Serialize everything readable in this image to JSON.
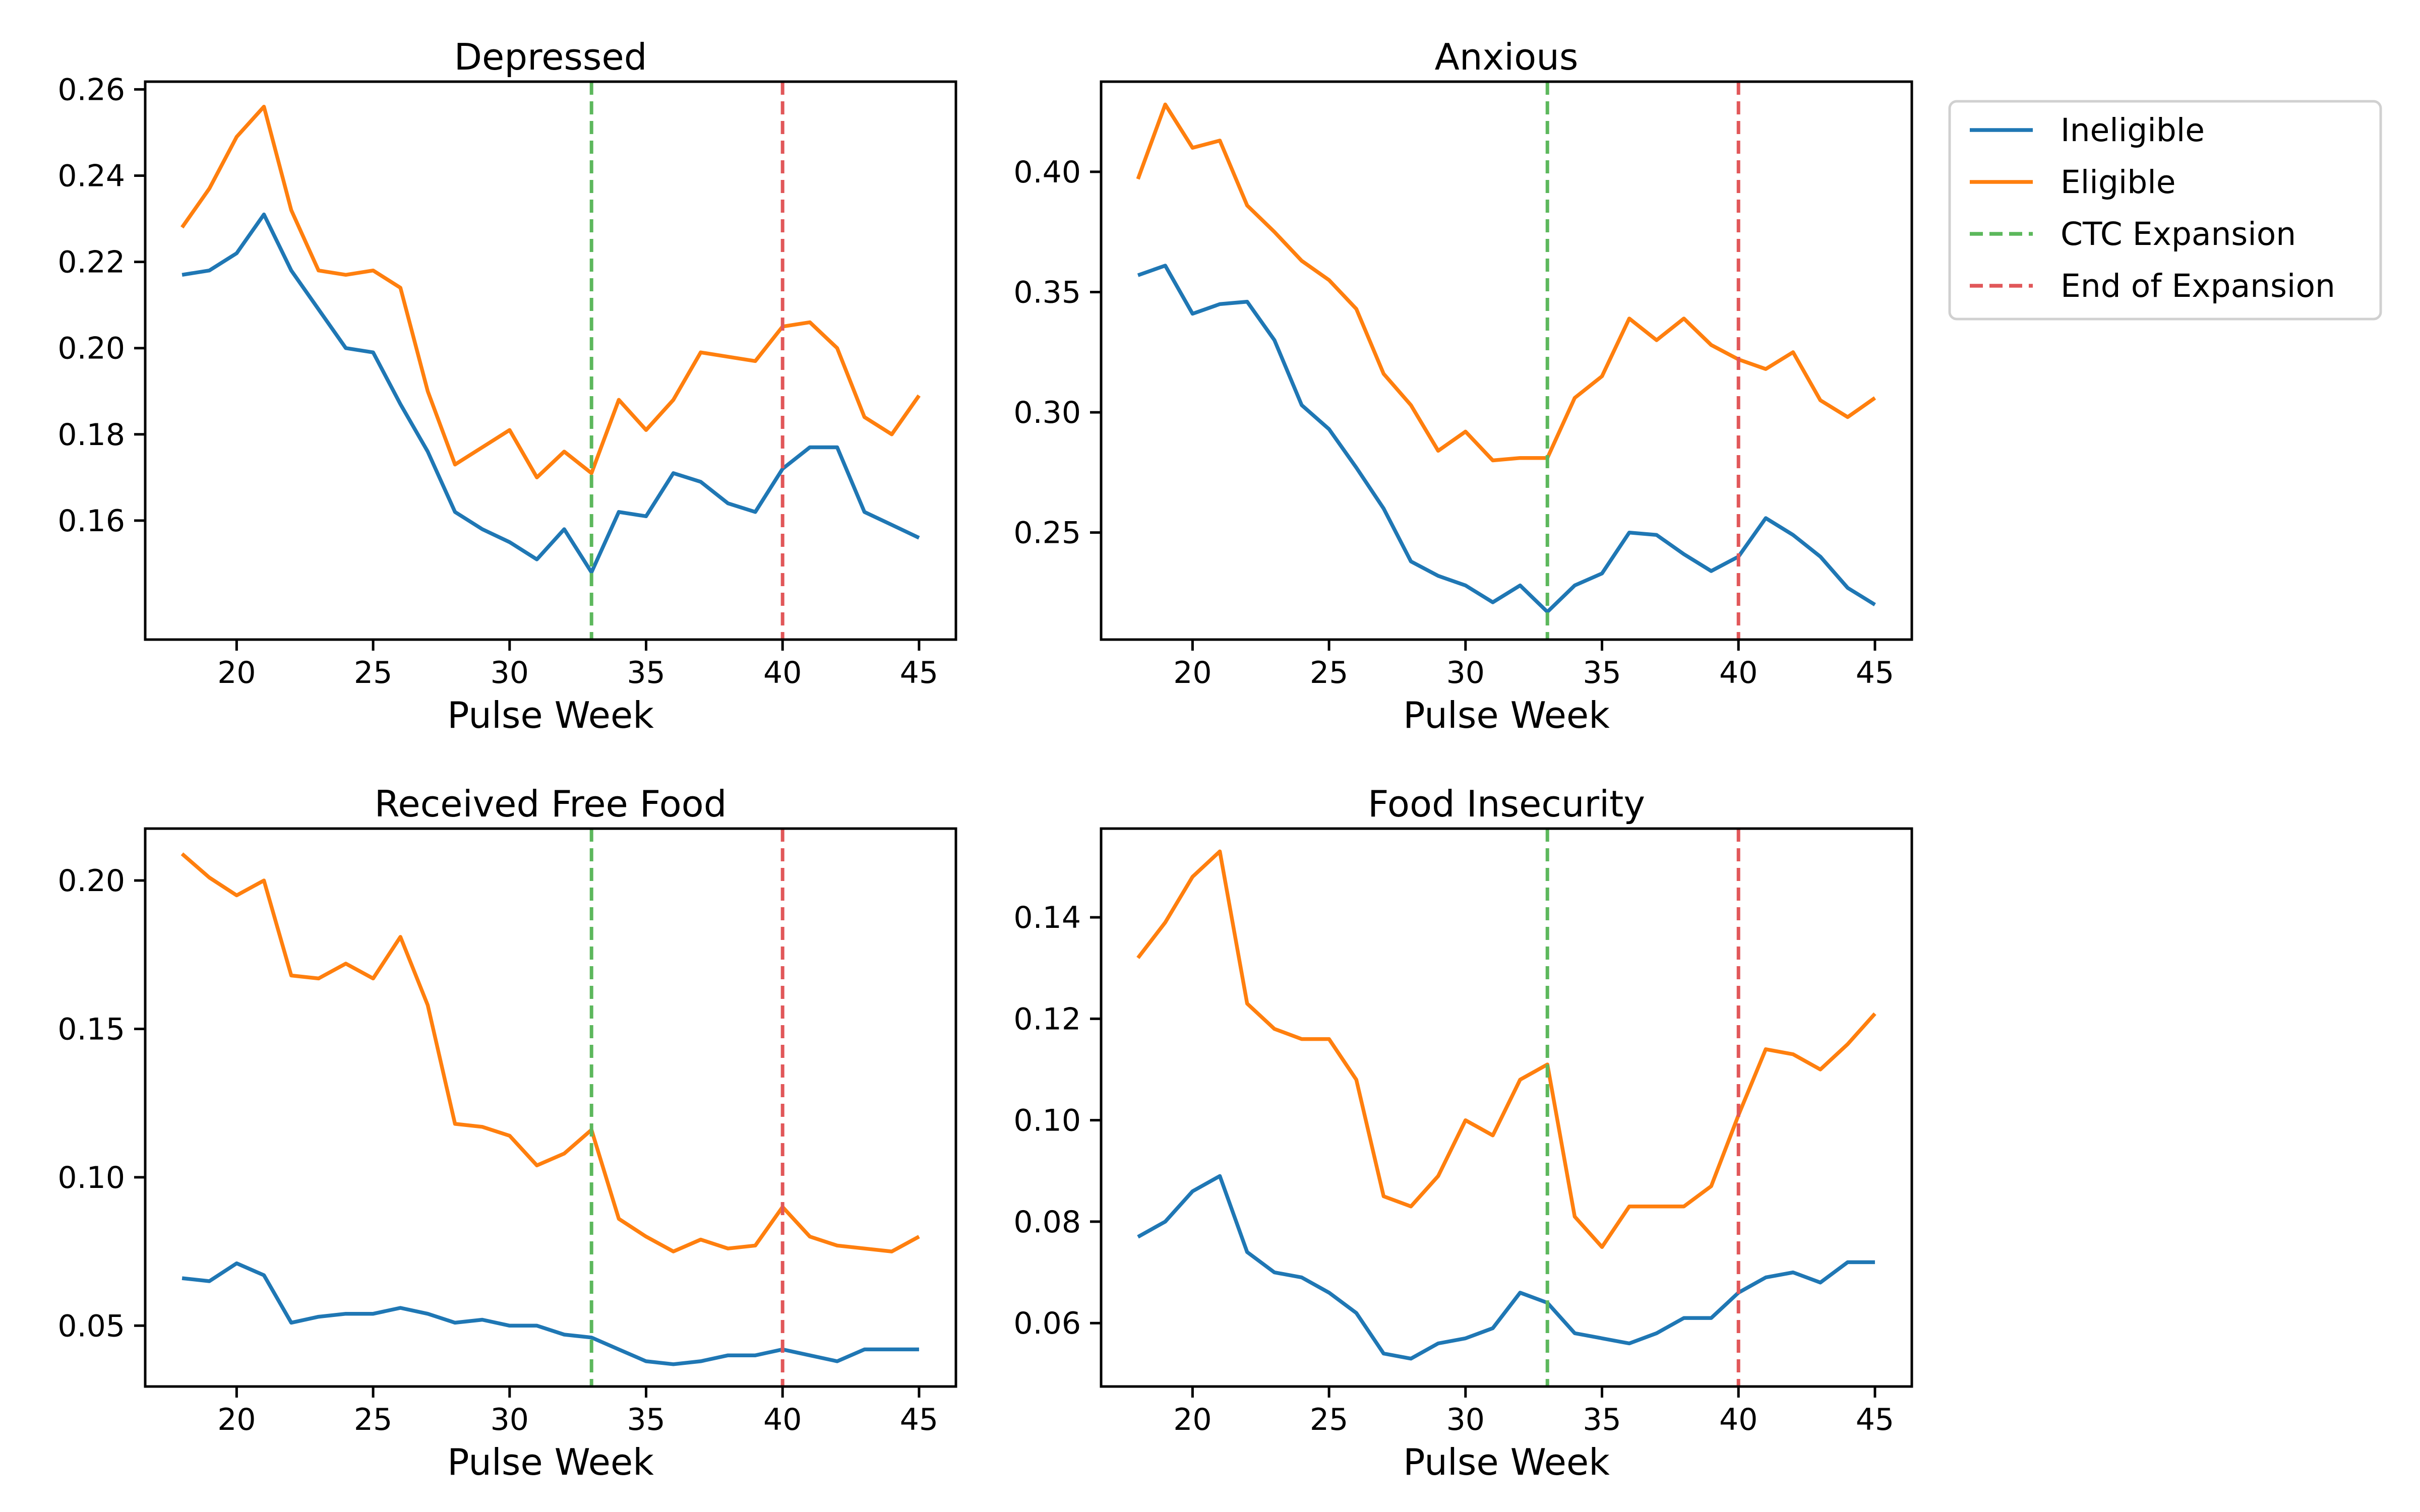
{
  "colors": {
    "ineligible": "#1f77b4",
    "eligible": "#ff7f0e",
    "ctc_expansion": "#5cb85c",
    "end_of_expansion": "#e15759"
  },
  "legend": {
    "placement": "outside-top-right",
    "entries": [
      {
        "label": "Ineligible",
        "style": "solid",
        "color_key": "ineligible"
      },
      {
        "label": "Eligible",
        "style": "solid",
        "color_key": "eligible"
      },
      {
        "label": "CTC Expansion",
        "style": "dashed",
        "color_key": "ctc_expansion"
      },
      {
        "label": "End of Expansion",
        "style": "dashed",
        "color_key": "end_of_expansion"
      }
    ]
  },
  "chart_data": [
    {
      "type": "line",
      "title": "Depressed",
      "xlabel": "Pulse Week",
      "ylabel": "",
      "xlim": [
        16.65,
        46.35
      ],
      "ylim": [
        0.1324,
        0.2618
      ],
      "xticks": [
        20,
        25,
        30,
        35,
        40,
        45
      ],
      "yticks": [
        0.16,
        0.18,
        0.2,
        0.22,
        0.24,
        0.26
      ],
      "ytick_labels": [
        "0.16",
        "0.18",
        "0.20",
        "0.22",
        "0.24",
        "0.26"
      ],
      "grid": false,
      "vlines": [
        33,
        40
      ],
      "x": [
        18,
        19,
        20,
        21,
        22,
        23,
        24,
        25,
        26,
        27,
        28,
        29,
        30,
        31,
        32,
        33,
        34,
        35,
        36,
        37,
        38,
        39,
        40,
        41,
        42,
        43,
        44,
        45
      ],
      "series": [
        {
          "name": "Ineligible",
          "values": [
            0.217,
            0.218,
            0.222,
            0.231,
            0.218,
            0.209,
            0.2,
            0.199,
            0.187,
            0.176,
            0.162,
            0.158,
            0.155,
            0.151,
            0.158,
            0.148,
            0.162,
            0.161,
            0.171,
            0.169,
            0.164,
            0.162,
            0.172,
            0.177,
            0.177,
            0.162,
            0.159,
            0.156
          ]
        },
        {
          "name": "Eligible",
          "values": [
            0.228,
            0.237,
            0.249,
            0.256,
            0.232,
            0.218,
            0.217,
            0.218,
            0.214,
            0.19,
            0.173,
            0.177,
            0.181,
            0.17,
            0.176,
            0.171,
            0.188,
            0.181,
            0.188,
            0.199,
            0.198,
            0.197,
            0.205,
            0.206,
            0.2,
            0.184,
            0.18,
            0.189
          ]
        }
      ]
    },
    {
      "type": "line",
      "title": "Anxious",
      "xlabel": "Pulse Week",
      "ylabel": "",
      "xlim": [
        16.65,
        46.35
      ],
      "ylim": [
        0.2055,
        0.4375
      ],
      "xticks": [
        20,
        25,
        30,
        35,
        40,
        45
      ],
      "yticks": [
        0.25,
        0.3,
        0.35,
        0.4
      ],
      "ytick_labels": [
        "0.25",
        "0.30",
        "0.35",
        "0.40"
      ],
      "grid": false,
      "vlines": [
        33,
        40
      ],
      "x": [
        18,
        19,
        20,
        21,
        22,
        23,
        24,
        25,
        26,
        27,
        28,
        29,
        30,
        31,
        32,
        33,
        34,
        35,
        36,
        37,
        38,
        39,
        40,
        41,
        42,
        43,
        44,
        45
      ],
      "series": [
        {
          "name": "Ineligible",
          "values": [
            0.357,
            0.361,
            0.341,
            0.345,
            0.346,
            0.33,
            0.303,
            0.293,
            0.277,
            0.26,
            0.238,
            0.232,
            0.228,
            0.221,
            0.228,
            0.217,
            0.228,
            0.233,
            0.25,
            0.249,
            0.241,
            0.234,
            0.24,
            0.256,
            0.249,
            0.24,
            0.227,
            0.22
          ]
        },
        {
          "name": "Eligible",
          "values": [
            0.397,
            0.428,
            0.41,
            0.413,
            0.386,
            0.375,
            0.363,
            0.355,
            0.343,
            0.316,
            0.303,
            0.284,
            0.292,
            0.28,
            0.281,
            0.281,
            0.306,
            0.315,
            0.339,
            0.33,
            0.339,
            0.328,
            0.322,
            0.318,
            0.325,
            0.305,
            0.298,
            0.306
          ]
        }
      ]
    },
    {
      "type": "line",
      "title": "Received Free Food",
      "xlabel": "Pulse Week",
      "ylabel": "",
      "xlim": [
        16.65,
        46.35
      ],
      "ylim": [
        0.0295,
        0.2175
      ],
      "xticks": [
        20,
        25,
        30,
        35,
        40,
        45
      ],
      "yticks": [
        0.05,
        0.1,
        0.15,
        0.2
      ],
      "ytick_labels": [
        "0.05",
        "0.10",
        "0.15",
        "0.20"
      ],
      "grid": false,
      "vlines": [
        33,
        40
      ],
      "x": [
        18,
        19,
        20,
        21,
        22,
        23,
        24,
        25,
        26,
        27,
        28,
        29,
        30,
        31,
        32,
        33,
        34,
        35,
        36,
        37,
        38,
        39,
        40,
        41,
        42,
        43,
        44,
        45
      ],
      "series": [
        {
          "name": "Ineligible",
          "values": [
            0.066,
            0.065,
            0.071,
            0.067,
            0.051,
            0.053,
            0.054,
            0.054,
            0.056,
            0.054,
            0.051,
            0.052,
            0.05,
            0.05,
            0.047,
            0.046,
            0.042,
            0.038,
            0.037,
            0.038,
            0.04,
            0.04,
            0.042,
            0.04,
            0.038,
            0.042,
            0.042,
            0.042
          ]
        },
        {
          "name": "Eligible",
          "values": [
            0.209,
            0.201,
            0.195,
            0.2,
            0.168,
            0.167,
            0.172,
            0.167,
            0.181,
            0.158,
            0.118,
            0.117,
            0.114,
            0.104,
            0.108,
            0.116,
            0.086,
            0.08,
            0.075,
            0.079,
            0.076,
            0.077,
            0.09,
            0.08,
            0.077,
            0.076,
            0.075,
            0.08
          ]
        }
      ]
    },
    {
      "type": "line",
      "title": "Food Insecurity",
      "xlabel": "Pulse Week",
      "ylabel": "",
      "xlim": [
        16.65,
        46.35
      ],
      "ylim": [
        0.0475,
        0.1575
      ],
      "xticks": [
        20,
        25,
        30,
        35,
        40,
        45
      ],
      "yticks": [
        0.06,
        0.08,
        0.1,
        0.12,
        0.14
      ],
      "ytick_labels": [
        "0.06",
        "0.08",
        "0.10",
        "0.12",
        "0.14"
      ],
      "grid": false,
      "vlines": [
        33,
        40
      ],
      "x": [
        18,
        19,
        20,
        21,
        22,
        23,
        24,
        25,
        26,
        27,
        28,
        29,
        30,
        31,
        32,
        33,
        34,
        35,
        36,
        37,
        38,
        39,
        40,
        41,
        42,
        43,
        44,
        45
      ],
      "series": [
        {
          "name": "Ineligible",
          "values": [
            0.077,
            0.08,
            0.086,
            0.089,
            0.074,
            0.07,
            0.069,
            0.066,
            0.062,
            0.054,
            0.053,
            0.056,
            0.057,
            0.059,
            0.066,
            0.064,
            0.058,
            0.057,
            0.056,
            0.058,
            0.061,
            0.061,
            0.066,
            0.069,
            0.07,
            0.068,
            0.072,
            0.072
          ]
        },
        {
          "name": "Eligible",
          "values": [
            0.132,
            0.139,
            0.148,
            0.153,
            0.123,
            0.118,
            0.116,
            0.116,
            0.108,
            0.085,
            0.083,
            0.089,
            0.1,
            0.097,
            0.108,
            0.111,
            0.081,
            0.075,
            0.083,
            0.083,
            0.083,
            0.087,
            0.101,
            0.114,
            0.113,
            0.11,
            0.115,
            0.121
          ]
        }
      ]
    }
  ]
}
